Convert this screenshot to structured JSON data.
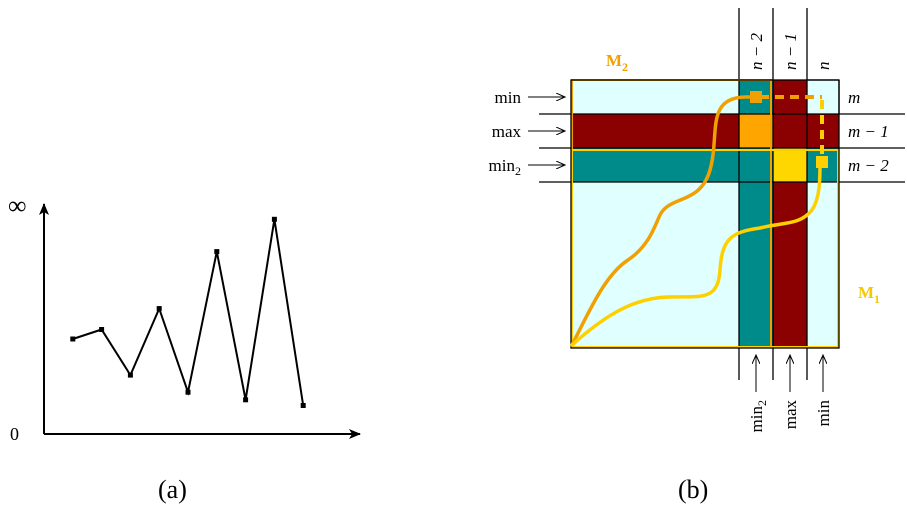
{
  "panel_a": {
    "caption": "(a)",
    "y_top_label": "∞",
    "y_bottom_label": "0",
    "series": [
      {
        "x": 1,
        "y": 0.5
      },
      {
        "x": 2,
        "y": 0.55
      },
      {
        "x": 3,
        "y": 0.31
      },
      {
        "x": 4,
        "y": 0.66
      },
      {
        "x": 5,
        "y": 0.22
      },
      {
        "x": 6,
        "y": 0.96
      },
      {
        "x": 7,
        "y": 0.18
      },
      {
        "x": 8,
        "y": 1.13
      },
      {
        "x": 9,
        "y": 0.15
      }
    ]
  },
  "panel_b": {
    "caption": "(b)",
    "matrix_labels": {
      "m2": "M",
      "m2_sub": "2",
      "m1": "M",
      "m1_sub": "1"
    },
    "col_labels": {
      "n_minus_2": "n − 2",
      "n_minus_1": "n − 1",
      "n": "n"
    },
    "row_labels": {
      "m": "m",
      "m_minus_1": "m − 1",
      "m_minus_2": "m − 2"
    },
    "left_labels": {
      "min": "min",
      "max": "max",
      "min2": "min",
      "min2_sub": "2"
    },
    "bottom_labels": {
      "min2": "min",
      "min2_sub": "2",
      "max": "max",
      "min": "min"
    },
    "colors": {
      "light_cyan": "#e0ffff",
      "dark_red": "#8b0000",
      "teal": "#008b8b",
      "orange": "#ffa500",
      "gold": "#ffd700",
      "path_orange": "#f0a000",
      "path_gold": "#ffd000",
      "label_orange": "#f0a000",
      "label_gold": "#f5c800"
    }
  }
}
